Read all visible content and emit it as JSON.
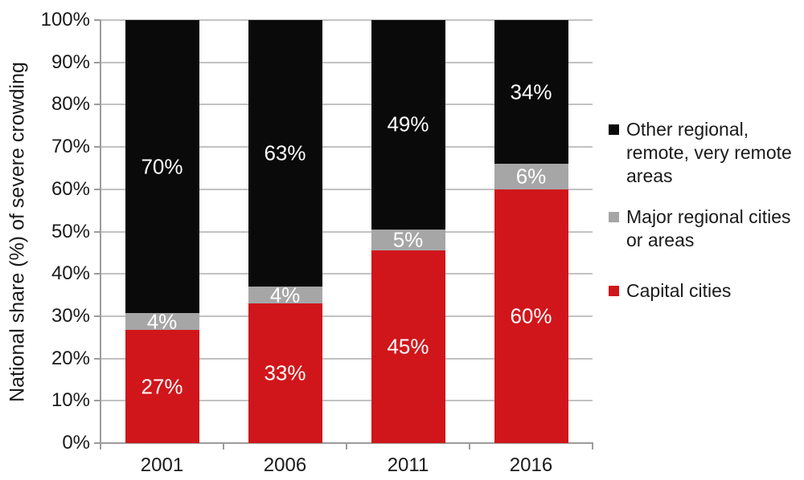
{
  "chart_data": {
    "type": "bar",
    "stacked": true,
    "title": "",
    "categories": [
      "2001",
      "2006",
      "2011",
      "2016"
    ],
    "series": [
      {
        "name": "Capital cities",
        "color": "#d0161b",
        "values": [
          27,
          33,
          45,
          60
        ]
      },
      {
        "name": "Major regional cities or areas",
        "color": "#a6a6a6",
        "values": [
          4,
          4,
          5,
          6
        ]
      },
      {
        "name": "Other regional, remote, very remote areas",
        "color": "#0a0a0a",
        "values": [
          70,
          63,
          49,
          34
        ]
      }
    ],
    "xlabel": "",
    "ylabel": "National share (%) of severe crowding",
    "ylim": [
      0,
      100
    ],
    "ytick_step": 10,
    "ytick_suffix": "%",
    "grid": true,
    "legend_position": "right",
    "data_label_suffix": "%",
    "data_label_color": "#ffffff"
  },
  "style": {
    "axis_color": "#9c9c9c",
    "gridline_color": "#c2c2c2",
    "text_color": "#1a1a1a",
    "background": "#ffffff"
  }
}
